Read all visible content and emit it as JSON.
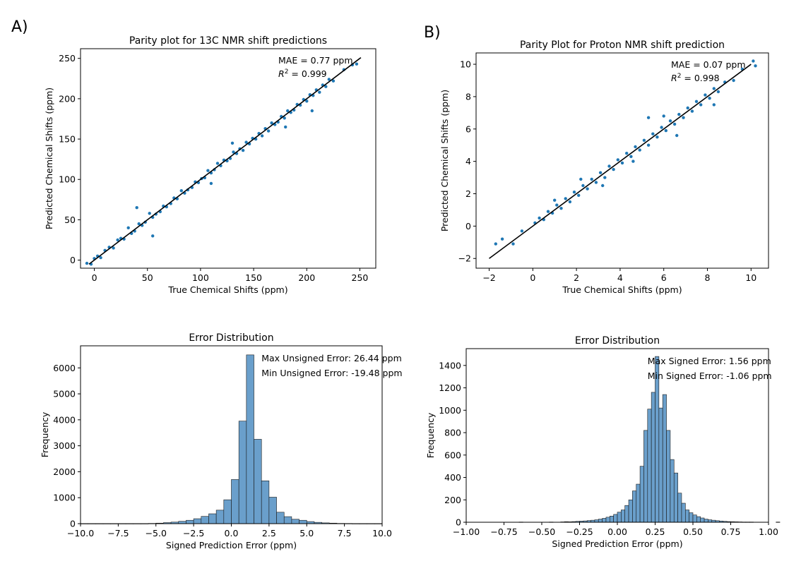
{
  "panel_labels": {
    "a": "A)",
    "b": "B)"
  },
  "colors": {
    "point": "#1f77b4",
    "bar": "#6a9fcb",
    "bar_edge": "#1a1a1a",
    "line": "#000000"
  },
  "chart_data": [
    {
      "id": "c13-parity",
      "type": "scatter",
      "title": "Parity plot for 13C NMR shift predictions",
      "xlabel": "True Chemical Shifts (ppm)",
      "ylabel": "Predicted Chemical Shifts (ppm)",
      "xlim": [
        -13,
        265
      ],
      "ylim": [
        -10,
        262
      ],
      "xticks": [
        0,
        50,
        100,
        150,
        200,
        250
      ],
      "xtick_labels": [
        "0",
        "50",
        "100",
        "150",
        "200",
        "250"
      ],
      "yticks": [
        0,
        50,
        100,
        150,
        200,
        250
      ],
      "ytick_labels": [
        "0",
        "50",
        "100",
        "150",
        "200",
        "250"
      ],
      "identity_line": [
        [
          -5,
          -5
        ],
        [
          251,
          251
        ]
      ],
      "annotations": {
        "mae": "MAE = 0.77 ppm",
        "r2_prefix": "R",
        "r2_sup": "2",
        "r2_value": " = 0.999"
      },
      "points": [
        [
          -7,
          -4
        ],
        [
          -3,
          -5
        ],
        [
          0,
          2
        ],
        [
          3,
          5
        ],
        [
          6,
          3
        ],
        [
          10,
          12
        ],
        [
          14,
          16
        ],
        [
          18,
          15
        ],
        [
          22,
          25
        ],
        [
          25,
          27
        ],
        [
          28,
          26
        ],
        [
          32,
          40
        ],
        [
          35,
          33
        ],
        [
          38,
          36
        ],
        [
          42,
          45
        ],
        [
          45,
          43
        ],
        [
          48,
          47
        ],
        [
          52,
          58
        ],
        [
          55,
          53
        ],
        [
          58,
          57
        ],
        [
          62,
          60
        ],
        [
          65,
          67
        ],
        [
          68,
          66
        ],
        [
          72,
          70
        ],
        [
          75,
          77
        ],
        [
          78,
          76
        ],
        [
          82,
          86
        ],
        [
          85,
          83
        ],
        [
          88,
          87
        ],
        [
          92,
          90
        ],
        [
          95,
          97
        ],
        [
          98,
          96
        ],
        [
          101,
          101
        ],
        [
          104,
          102
        ],
        [
          107,
          111
        ],
        [
          110,
          108
        ],
        [
          113,
          112
        ],
        [
          116,
          120
        ],
        [
          119,
          117
        ],
        [
          122,
          124
        ],
        [
          125,
          123
        ],
        [
          128,
          126
        ],
        [
          131,
          134
        ],
        [
          134,
          132
        ],
        [
          137,
          138
        ],
        [
          140,
          136
        ],
        [
          143,
          146
        ],
        [
          146,
          144
        ],
        [
          149,
          151
        ],
        [
          152,
          150
        ],
        [
          155,
          157
        ],
        [
          158,
          154
        ],
        [
          161,
          163
        ],
        [
          164,
          160
        ],
        [
          167,
          170
        ],
        [
          170,
          168
        ],
        [
          173,
          171
        ],
        [
          176,
          178
        ],
        [
          179,
          176
        ],
        [
          182,
          185
        ],
        [
          185,
          183
        ],
        [
          188,
          186
        ],
        [
          191,
          193
        ],
        [
          194,
          192
        ],
        [
          197,
          199
        ],
        [
          200,
          197
        ],
        [
          203,
          205
        ],
        [
          206,
          204
        ],
        [
          209,
          211
        ],
        [
          212,
          208
        ],
        [
          215,
          217
        ],
        [
          218,
          215
        ],
        [
          221,
          224
        ],
        [
          225,
          222
        ],
        [
          235,
          236
        ],
        [
          243,
          242
        ],
        [
          247,
          243
        ],
        [
          40,
          65
        ],
        [
          110,
          95
        ],
        [
          180,
          165
        ],
        [
          130,
          145
        ],
        [
          55,
          30
        ],
        [
          205,
          185
        ]
      ]
    },
    {
      "id": "h1-parity",
      "type": "scatter",
      "title": "Parity Plot for Proton NMR shift prediction",
      "xlabel": "True Chemical Shifts (ppm)",
      "ylabel": "Predicted Chemical Shifts (ppm)",
      "xlim": [
        -2.6,
        10.8
      ],
      "ylim": [
        -2.6,
        10.7
      ],
      "xticks": [
        -2,
        0,
        2,
        4,
        6,
        8,
        10
      ],
      "xtick_labels": [
        "−2",
        "0",
        "2",
        "4",
        "6",
        "8",
        "10"
      ],
      "yticks": [
        -2,
        0,
        2,
        4,
        6,
        8,
        10
      ],
      "ytick_labels": [
        "−2",
        "0",
        "2",
        "4",
        "6",
        "8",
        "10"
      ],
      "identity_line": [
        [
          -2,
          -2
        ],
        [
          10,
          10
        ]
      ],
      "annotations": {
        "mae": "MAE = 0.07 ppm",
        "r2_prefix": "R",
        "r2_sup": "2",
        "r2_value": " = 0.998"
      },
      "points": [
        [
          -1.7,
          -1.1
        ],
        [
          -1.4,
          -0.8
        ],
        [
          -0.9,
          -1.1
        ],
        [
          -0.5,
          -0.3
        ],
        [
          0.1,
          0.2
        ],
        [
          0.3,
          0.5
        ],
        [
          0.5,
          0.4
        ],
        [
          0.7,
          0.9
        ],
        [
          0.9,
          0.8
        ],
        [
          1.1,
          1.3
        ],
        [
          1.3,
          1.1
        ],
        [
          1.5,
          1.7
        ],
        [
          1.7,
          1.5
        ],
        [
          1.9,
          2.1
        ],
        [
          2.1,
          1.9
        ],
        [
          2.3,
          2.5
        ],
        [
          2.5,
          2.3
        ],
        [
          2.7,
          2.9
        ],
        [
          2.9,
          2.7
        ],
        [
          3.1,
          3.3
        ],
        [
          3.3,
          3.0
        ],
        [
          3.5,
          3.7
        ],
        [
          3.7,
          3.5
        ],
        [
          3.9,
          4.1
        ],
        [
          4.1,
          3.9
        ],
        [
          4.3,
          4.5
        ],
        [
          4.5,
          4.3
        ],
        [
          4.7,
          4.9
        ],
        [
          4.9,
          4.7
        ],
        [
          5.1,
          5.3
        ],
        [
          5.3,
          5.0
        ],
        [
          5.5,
          5.7
        ],
        [
          5.7,
          5.5
        ],
        [
          5.9,
          6.1
        ],
        [
          6.1,
          5.9
        ],
        [
          6.3,
          6.5
        ],
        [
          6.5,
          6.3
        ],
        [
          6.7,
          6.9
        ],
        [
          6.9,
          6.7
        ],
        [
          7.1,
          7.3
        ],
        [
          7.3,
          7.1
        ],
        [
          7.5,
          7.7
        ],
        [
          7.7,
          7.5
        ],
        [
          7.9,
          8.1
        ],
        [
          8.1,
          7.9
        ],
        [
          8.3,
          8.5
        ],
        [
          8.5,
          8.3
        ],
        [
          8.8,
          8.9
        ],
        [
          9.2,
          9.0
        ],
        [
          9.6,
          9.7
        ],
        [
          10.1,
          10.2
        ],
        [
          10.2,
          9.9
        ],
        [
          5.3,
          6.7
        ],
        [
          6.0,
          6.8
        ],
        [
          3.2,
          2.5
        ],
        [
          6.6,
          5.6
        ],
        [
          2.2,
          2.9
        ],
        [
          4.6,
          4.0
        ],
        [
          8.3,
          7.5
        ],
        [
          1.0,
          1.6
        ]
      ]
    },
    {
      "id": "c13-error",
      "type": "bar",
      "title": "Error Distribution",
      "xlabel": "Signed Prediction Error (ppm)",
      "ylabel": "Frequency",
      "xlim": [
        -10,
        10
      ],
      "ylim": [
        0,
        6850
      ],
      "xticks": [
        -10,
        -7.5,
        -5,
        -2.5,
        0,
        2.5,
        5,
        7.5,
        10
      ],
      "xtick_labels": [
        "−10.0",
        "−7.5",
        "−5.0",
        "−2.5",
        "0.0",
        "2.5",
        "5.0",
        "7.5",
        "10.0"
      ],
      "yticks": [
        0,
        1000,
        2000,
        3000,
        4000,
        5000,
        6000
      ],
      "ytick_labels": [
        "0",
        "1000",
        "2000",
        "3000",
        "4000",
        "5000",
        "6000"
      ],
      "annotations": [
        "Max Unsigned Error: 26.44 ppm",
        "Min Unsigned Error: -19.48 ppm"
      ],
      "bin_start": -10,
      "bin_width": 0.5,
      "values": [
        5,
        5,
        5,
        5,
        5,
        5,
        5,
        5,
        5,
        10,
        20,
        40,
        60,
        90,
        130,
        190,
        280,
        380,
        520,
        920,
        1700,
        3950,
        6500,
        3250,
        1650,
        1020,
        440,
        270,
        170,
        130,
        80,
        50,
        30,
        20,
        10,
        8,
        5,
        5,
        5,
        5
      ]
    },
    {
      "id": "h1-error",
      "type": "bar",
      "title": "Error Distribution",
      "xlabel": "Signed Prediction Error (ppm)",
      "ylabel": "Frequency",
      "xlim": [
        -1,
        1
      ],
      "ylim": [
        0,
        1550
      ],
      "xticks": [
        -1,
        -0.75,
        -0.5,
        -0.25,
        0,
        0.25,
        0.5,
        0.75,
        1
      ],
      "xtick_labels": [
        "−1.00",
        "−0.75",
        "−0.50",
        "−0.25",
        "0.00",
        "0.25",
        "0.50",
        "0.75",
        "1.00"
      ],
      "yticks": [
        0,
        200,
        400,
        600,
        800,
        1000,
        1200,
        1400
      ],
      "ytick_labels": [
        "0",
        "200",
        "400",
        "600",
        "800",
        "1000",
        "1200",
        "1400"
      ],
      "annotations": [
        "Max Signed Error: 1.56 ppm",
        "Min Signed Error: -1.06 ppm"
      ],
      "bin_start": -0.65,
      "bin_width": 0.025,
      "values": [
        2,
        0,
        0,
        0,
        0,
        0,
        0,
        0,
        2,
        0,
        0,
        3,
        5,
        4,
        6,
        8,
        10,
        12,
        15,
        18,
        22,
        28,
        35,
        45,
        55,
        70,
        90,
        110,
        150,
        200,
        280,
        340,
        500,
        820,
        1010,
        1160,
        1480,
        1020,
        1140,
        820,
        560,
        440,
        260,
        170,
        110,
        85,
        65,
        50,
        38,
        28,
        22,
        18,
        14,
        11,
        8,
        6,
        5,
        4,
        3,
        2,
        2,
        2,
        0,
        0,
        0,
        0,
        0,
        0,
        2,
        0,
        0,
        0,
        0,
        0,
        0,
        0,
        0,
        0,
        0,
        0,
        0,
        0,
        0,
        0,
        0,
        0,
        0,
        0,
        0,
        0,
        0,
        0,
        0,
        0,
        0,
        0,
        0,
        0,
        0,
        0,
        0,
        0,
        0,
        0,
        0,
        0,
        0,
        0,
        0
      ]
    }
  ]
}
